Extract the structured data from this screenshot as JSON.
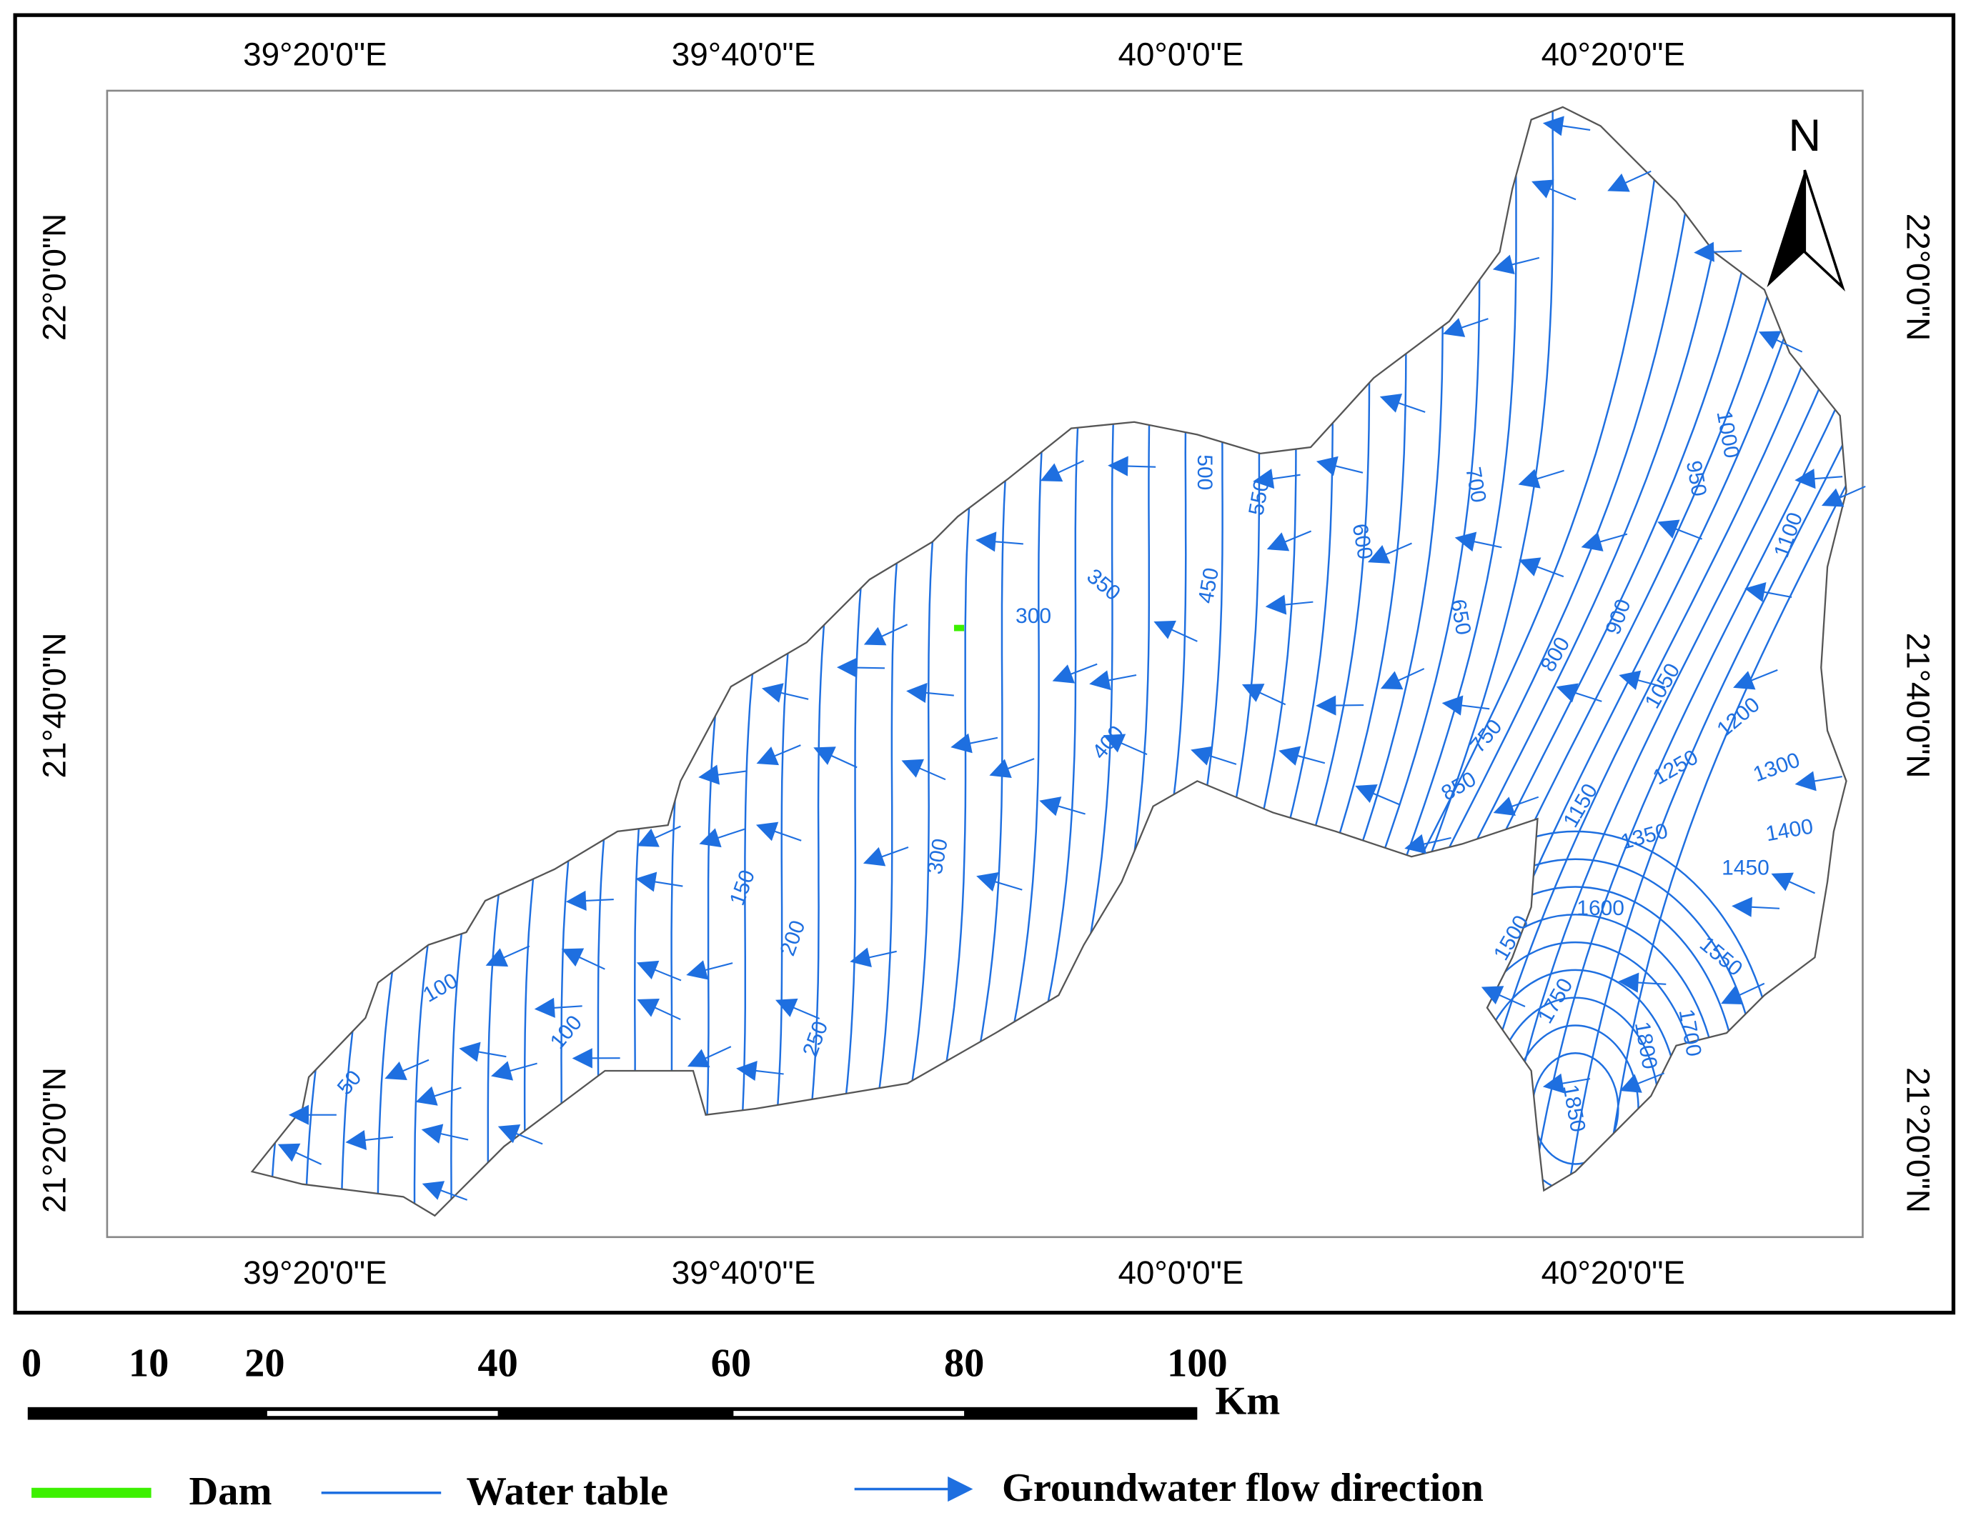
{
  "map": {
    "lon_labels_top": [
      "39°20'0\"E",
      "39°40'0\"E",
      "40°0'0\"E",
      "40°20'0\"E"
    ],
    "lon_labels_bottom": [
      "39°20'0\"E",
      "39°40'0\"E",
      "40°0'0\"E",
      "40°20'0\"E"
    ],
    "lat_labels_left": [
      "22°0'0\"N",
      "21°40'0\"N",
      "21°20'0\"N"
    ],
    "lat_labels_right": [
      "22°0'0\"N",
      "21°40'0\"N",
      "21°20'0\"N"
    ],
    "north": "N",
    "contour_labels": [
      50,
      100,
      100,
      150,
      200,
      250,
      300,
      300,
      350,
      400,
      450,
      500,
      550,
      600,
      650,
      700,
      750,
      800,
      850,
      900,
      950,
      1000,
      1050,
      1100,
      1150,
      1200,
      1250,
      1300,
      1350,
      1400,
      1450,
      1500,
      1600,
      1550,
      1750,
      1800,
      1700,
      1850
    ]
  },
  "scale_bar": {
    "ticks": [
      0,
      10,
      20,
      40,
      60,
      80,
      100
    ],
    "unit": "Km"
  },
  "legend": {
    "items": [
      "Dam",
      "Water table",
      "Groundwater flow direction"
    ]
  }
}
